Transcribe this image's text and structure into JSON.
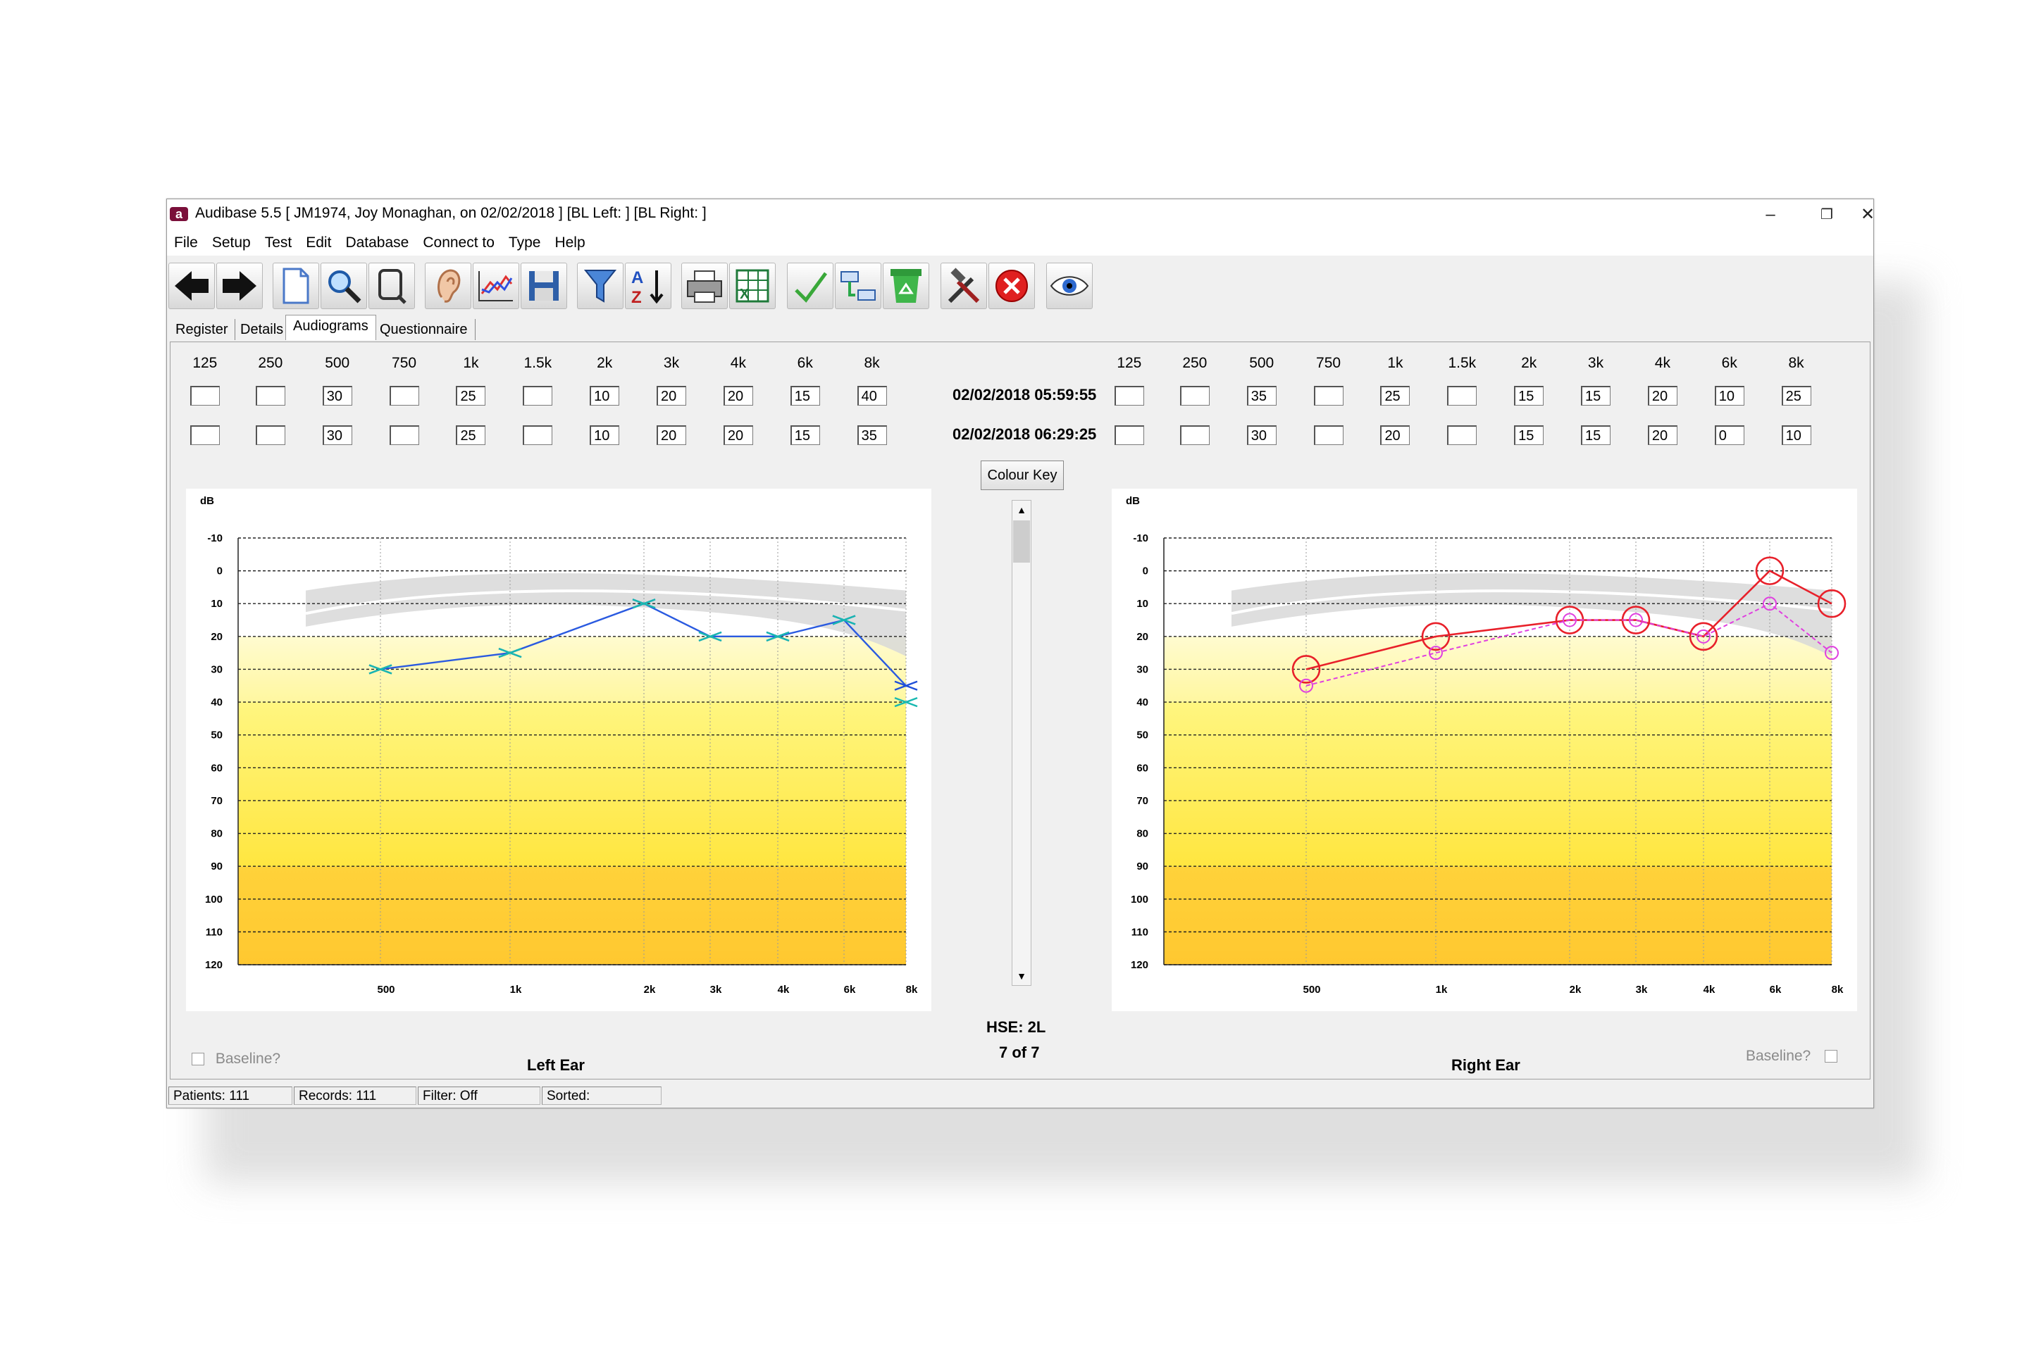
{
  "window": {
    "title": "Audibase 5.5 [ JM1974, Joy Monaghan, on 02/02/2018 ] [BL Left:  ] [BL Right:  ]",
    "app_icon_letter": "a",
    "minimize": "–",
    "restore": "❐",
    "close": "✕"
  },
  "menu": [
    "File",
    "Setup",
    "Test",
    "Edit",
    "Database",
    "Connect to",
    "Type",
    "Help"
  ],
  "toolbar_icons": [
    "back-arrow-icon",
    "forward-arrow-icon",
    "new-document-icon",
    "search-icon",
    "zoom-icon",
    "ear-icon",
    "chart-icon",
    "save-icon",
    "filter-icon",
    "sort-az-icon",
    "print-icon",
    "export-excel-icon",
    "check-icon",
    "transfer-icon",
    "recycle-icon",
    "tools-icon",
    "cancel-icon",
    "view-eye-icon"
  ],
  "tabs": [
    "Register",
    "Details",
    "Audiograms",
    "Questionnaire"
  ],
  "active_tab": "Audiograms",
  "freq_labels": [
    "125",
    "250",
    "500",
    "750",
    "1k",
    "1.5k",
    "2k",
    "3k",
    "4k",
    "6k",
    "8k"
  ],
  "left_rows": [
    [
      "",
      "",
      "30",
      "",
      "25",
      "",
      "10",
      "20",
      "20",
      "15",
      "40"
    ],
    [
      "",
      "",
      "30",
      "",
      "25",
      "",
      "10",
      "20",
      "20",
      "15",
      "35"
    ]
  ],
  "right_rows": [
    [
      "",
      "",
      "35",
      "",
      "25",
      "",
      "15",
      "15",
      "20",
      "10",
      "25"
    ],
    [
      "",
      "",
      "30",
      "",
      "20",
      "",
      "15",
      "15",
      "20",
      "0",
      "10"
    ]
  ],
  "dates": [
    "02/02/2018 05:59:55",
    "02/02/2018 06:29:25"
  ],
  "colour_key": "Colour Key",
  "hse": "HSE:  2L",
  "record_index": "7 of 7",
  "left_ear_label": "Left Ear",
  "right_ear_label": "Right Ear",
  "baseline_label": "Baseline?",
  "status": {
    "patients": "Patients:  111",
    "records": "Records:  111",
    "filter": "Filter: Off",
    "sorted": "Sorted:"
  },
  "chart_data": [
    {
      "type": "line",
      "ear": "left",
      "ylabel": "dB",
      "y_ticks": [
        "-10",
        "0",
        "10",
        "20",
        "30",
        "40",
        "50",
        "60",
        "70",
        "80",
        "90",
        "100",
        "110",
        "120"
      ],
      "ylim": [
        -10,
        120
      ],
      "y_inverted": true,
      "x_tick_labels": [
        "500",
        "1k",
        "2k",
        "3k",
        "4k",
        "6k",
        "8k"
      ],
      "grid": true,
      "colors": {
        "marker_current": "#1f4fd8",
        "marker_previous": "#18b8b0",
        "line": "#2a5ae0"
      },
      "series": [
        {
          "values": [
            30,
            25,
            10,
            20,
            20,
            15,
            35
          ],
          "marker": "x"
        },
        {
          "values": [
            30,
            25,
            10,
            20,
            20,
            15,
            40
          ],
          "marker": "x"
        }
      ]
    },
    {
      "type": "line",
      "ear": "right",
      "ylabel": "dB",
      "y_ticks": [
        "-10",
        "0",
        "10",
        "20",
        "30",
        "40",
        "50",
        "60",
        "70",
        "80",
        "90",
        "100",
        "110",
        "120"
      ],
      "ylim": [
        -10,
        120
      ],
      "y_inverted": true,
      "x_tick_labels": [
        "500",
        "1k",
        "2k",
        "3k",
        "4k",
        "6k",
        "8k"
      ],
      "grid": true,
      "colors": {
        "marker_current": "#e8202a",
        "marker_previous": "#e040e0"
      },
      "series": [
        {
          "values": [
            30,
            20,
            15,
            15,
            20,
            0,
            10
          ],
          "marker": "o",
          "style": "solid"
        },
        {
          "values": [
            35,
            25,
            15,
            15,
            20,
            10,
            25
          ],
          "marker": "o",
          "style": "dashed"
        }
      ]
    }
  ]
}
